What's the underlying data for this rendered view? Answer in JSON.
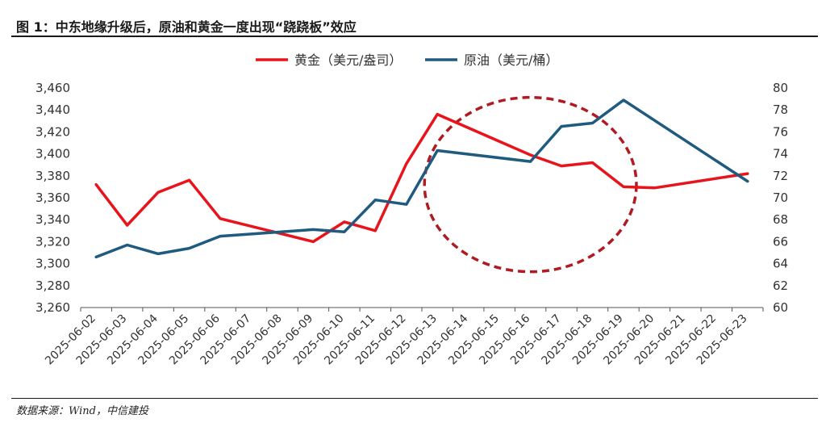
{
  "figure": {
    "title": "图 1：中东地缘升级后，原油和黄金一度出现“跷跷板”效应",
    "source": "数据来源：Wind，中信建投"
  },
  "colors": {
    "gold": "#e8141b",
    "oil": "#1f5a7f",
    "circle": "#b01b22",
    "axis": "#555555",
    "text": "#333333"
  },
  "chart_data": {
    "type": "line",
    "categories": [
      "2025-06-02",
      "2025-06-03",
      "2025-06-04",
      "2025-06-05",
      "2025-06-06",
      "2025-06-07",
      "2025-06-08",
      "2025-06-09",
      "2025-06-10",
      "2025-06-11",
      "2025-06-12",
      "2025-06-13",
      "2025-06-14",
      "2025-06-15",
      "2025-06-16",
      "2025-06-17",
      "2025-06-18",
      "2025-06-19",
      "2025-06-20",
      "2025-06-21",
      "2025-06-22",
      "2025-06-23"
    ],
    "legend_position": "top-center",
    "grid": false,
    "left_axis": {
      "ticks": [
        "3,260",
        "3,280",
        "3,300",
        "3,320",
        "3,340",
        "3,360",
        "3,380",
        "3,400",
        "3,420",
        "3,440",
        "3,460"
      ],
      "ylim": [
        3260,
        3460
      ]
    },
    "right_axis": {
      "ticks": [
        "60",
        "62",
        "64",
        "66",
        "68",
        "70",
        "72",
        "74",
        "76",
        "78",
        "80"
      ],
      "ylim": [
        60,
        80
      ]
    },
    "series": [
      {
        "name": "黄金（美元/盎司）",
        "axis": "left",
        "points": [
          {
            "x": "2025-06-02",
            "y": 3372
          },
          {
            "x": "2025-06-03",
            "y": 3335
          },
          {
            "x": "2025-06-04",
            "y": 3365
          },
          {
            "x": "2025-06-05",
            "y": 3376
          },
          {
            "x": "2025-06-06",
            "y": 3341
          },
          {
            "x": "2025-06-09",
            "y": 3320
          },
          {
            "x": "2025-06-10",
            "y": 3338
          },
          {
            "x": "2025-06-11",
            "y": 3330
          },
          {
            "x": "2025-06-12",
            "y": 3391
          },
          {
            "x": "2025-06-13",
            "y": 3436
          },
          {
            "x": "2025-06-16",
            "y": 3399
          },
          {
            "x": "2025-06-17",
            "y": 3389
          },
          {
            "x": "2025-06-18",
            "y": 3392
          },
          {
            "x": "2025-06-19",
            "y": 3370
          },
          {
            "x": "2025-06-20",
            "y": 3369
          },
          {
            "x": "2025-06-23",
            "y": 3382
          }
        ]
      },
      {
        "name": "原油（美元/桶）",
        "axis": "right",
        "points": [
          {
            "x": "2025-06-02",
            "y": 64.6
          },
          {
            "x": "2025-06-03",
            "y": 65.7
          },
          {
            "x": "2025-06-04",
            "y": 64.9
          },
          {
            "x": "2025-06-05",
            "y": 65.4
          },
          {
            "x": "2025-06-06",
            "y": 66.5
          },
          {
            "x": "2025-06-09",
            "y": 67.1
          },
          {
            "x": "2025-06-10",
            "y": 66.9
          },
          {
            "x": "2025-06-11",
            "y": 69.8
          },
          {
            "x": "2025-06-12",
            "y": 69.4
          },
          {
            "x": "2025-06-13",
            "y": 74.3
          },
          {
            "x": "2025-06-16",
            "y": 73.3
          },
          {
            "x": "2025-06-17",
            "y": 76.5
          },
          {
            "x": "2025-06-18",
            "y": 76.8
          },
          {
            "x": "2025-06-19",
            "y": 78.9
          },
          {
            "x": "2025-06-23",
            "y": 71.5
          }
        ]
      }
    ],
    "annotation": {
      "shape": "dashed-ellipse",
      "around": [
        "2025-06-13",
        "2025-06-19"
      ]
    }
  }
}
